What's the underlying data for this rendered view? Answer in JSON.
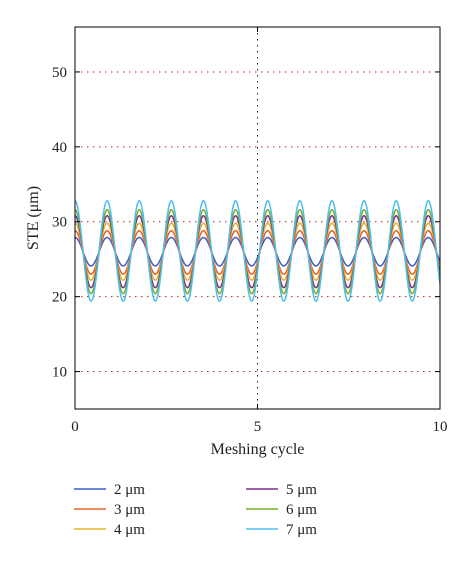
{
  "chart_data": {
    "type": "line",
    "title": "",
    "xlabel": "Meshing cycle",
    "ylabel": "STE (μm)",
    "xlim": [
      0,
      10
    ],
    "ylim": [
      5,
      56
    ],
    "xticks": [
      0,
      5,
      10
    ],
    "yticks": [
      10,
      20,
      30,
      40,
      50
    ],
    "grid": "dotted",
    "legend_placement": "below",
    "period": 0.88,
    "center": 26.0,
    "series": [
      {
        "name": "2 μm",
        "color": "#3a5fcd",
        "min": 24.1,
        "max": 27.9
      },
      {
        "name": "3 μm",
        "color": "#e8602c",
        "min": 23.0,
        "max": 28.8
      },
      {
        "name": "4 μm",
        "color": "#e5b22b",
        "min": 22.2,
        "max": 29.8
      },
      {
        "name": "5 μm",
        "color": "#7e2f8e",
        "min": 21.2,
        "max": 30.8
      },
      {
        "name": "6 μm",
        "color": "#77ac30",
        "min": 20.4,
        "max": 31.6
      },
      {
        "name": "7 μm",
        "color": "#4dbeee",
        "min": 19.4,
        "max": 32.8
      }
    ]
  }
}
